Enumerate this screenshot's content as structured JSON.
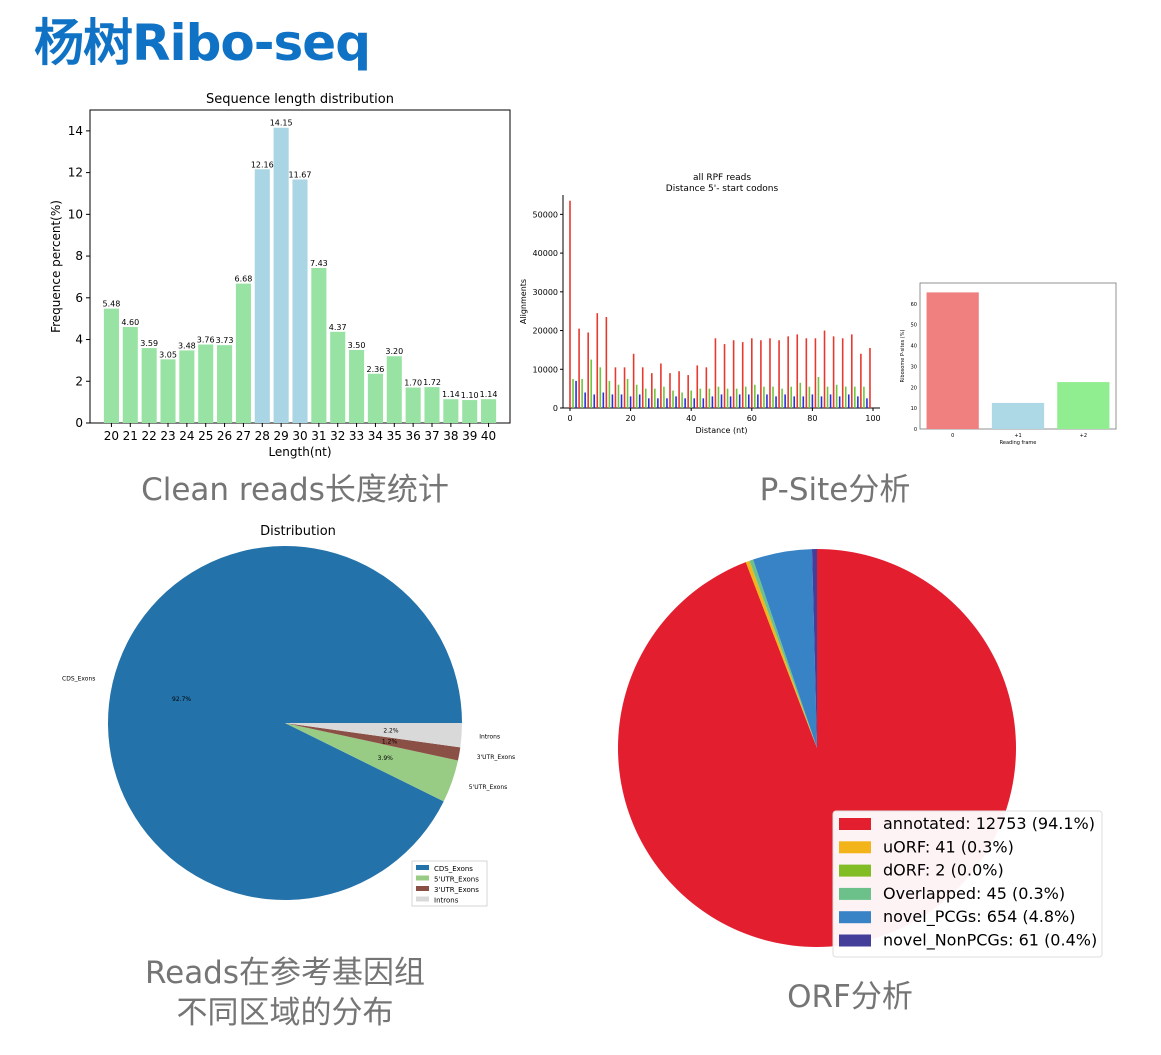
{
  "page": {
    "title": "杨树Ribo-seq"
  },
  "captions": {
    "length": "Clean reads长度统计",
    "psite": "P-Site分析",
    "dist_line1": "Reads在参考基因组",
    "dist_line2": "不同区域的分布",
    "orf": "ORF分析"
  },
  "colors": {
    "title": "#0f72c4",
    "caption": "#757575",
    "green": "#98e3a4",
    "blue": "#a9d5e4"
  },
  "chart_data": [
    {
      "id": "length",
      "type": "bar",
      "title": "Sequence length distribution",
      "xlabel": "Length(nt)",
      "ylabel": "Frequence percent(%)",
      "ylim": [
        0,
        15
      ],
      "yticks": [
        0,
        2,
        4,
        6,
        8,
        10,
        12,
        14
      ],
      "categories": [
        "20",
        "21",
        "22",
        "23",
        "24",
        "25",
        "26",
        "27",
        "28",
        "29",
        "30",
        "31",
        "32",
        "33",
        "34",
        "35",
        "36",
        "37",
        "38",
        "39",
        "40"
      ],
      "values": [
        5.48,
        4.6,
        3.59,
        3.05,
        3.48,
        3.76,
        3.73,
        6.68,
        12.16,
        14.15,
        11.67,
        7.43,
        4.37,
        3.5,
        2.36,
        3.2,
        1.7,
        1.72,
        1.14,
        1.1,
        1.14
      ],
      "labels": [
        "5.48",
        "4.60",
        "3.59",
        "3.05",
        "3.48",
        "3.76",
        "3.73",
        "6.68",
        "12.16",
        "14.15",
        "11.67",
        "7.43",
        "4.37",
        "3.50",
        "2.36",
        "3.20",
        "1.70",
        "1.72",
        "1.14",
        "1.10",
        "1.14"
      ],
      "highlight": [
        "28",
        "29",
        "30"
      ]
    },
    {
      "id": "rpf",
      "type": "bar",
      "title_line1": "all RPF reads",
      "title_line2": "Distance 5'- start codons",
      "xlabel": "Distance (nt)",
      "ylabel": "Alignments",
      "xlim": [
        0,
        100
      ],
      "ylim": [
        0,
        55000
      ],
      "xticks": [
        0,
        20,
        40,
        60,
        80,
        100
      ],
      "yticks": [
        0,
        10000,
        20000,
        30000,
        40000,
        50000
      ],
      "series": [
        {
          "color": "#e8392f",
          "x": [
            0,
            3,
            6,
            9,
            12,
            15,
            18,
            21,
            24,
            27,
            30,
            33,
            36,
            39,
            42,
            45,
            48,
            51,
            54,
            57,
            60,
            63,
            66,
            69,
            72,
            75,
            78,
            81,
            84,
            87,
            90,
            93,
            96,
            99
          ],
          "values": [
            53500,
            20500,
            19500,
            24500,
            23500,
            10500,
            10500,
            14000,
            10500,
            9000,
            11500,
            9000,
            9500,
            8500,
            11000,
            10500,
            18000,
            16500,
            17500,
            17000,
            18000,
            17500,
            18000,
            17500,
            18500,
            19000,
            18000,
            18000,
            20000,
            18500,
            18000,
            19000,
            14000,
            15500
          ]
        },
        {
          "color": "#6ec63c",
          "x": [
            1,
            4,
            7,
            10,
            13,
            16,
            19,
            22,
            25,
            28,
            31,
            34,
            37,
            40,
            43,
            46,
            49,
            52,
            55,
            58,
            61,
            64,
            67,
            70,
            73,
            76,
            79,
            82,
            85,
            88,
            91,
            94,
            97
          ],
          "values": [
            7500,
            7500,
            12500,
            10500,
            7000,
            6000,
            7500,
            6000,
            5000,
            5000,
            5500,
            4500,
            4000,
            4500,
            5000,
            5000,
            5500,
            5000,
            5000,
            5500,
            6000,
            5500,
            5500,
            5000,
            5500,
            6500,
            5500,
            8000,
            5500,
            6000,
            5500,
            5500,
            5500
          ]
        },
        {
          "color": "#2b2fd6",
          "x": [
            2,
            5,
            8,
            11,
            14,
            17,
            20,
            23,
            26,
            29,
            32,
            35,
            38,
            41,
            44,
            47,
            50,
            53,
            56,
            59,
            62,
            65,
            68,
            71,
            74,
            77,
            80,
            83,
            86,
            89,
            92,
            95,
            98
          ],
          "values": [
            7000,
            4000,
            3500,
            4000,
            3500,
            3500,
            3000,
            3500,
            2500,
            2500,
            2500,
            3000,
            2500,
            2500,
            2500,
            3000,
            3500,
            3000,
            3500,
            3500,
            3500,
            3500,
            3000,
            3500,
            3000,
            3000,
            3500,
            3000,
            3500,
            3000,
            3500,
            3000,
            2500
          ]
        }
      ]
    },
    {
      "id": "frame",
      "type": "bar",
      "xlabel": "Reading frame",
      "ylabel": "Ribosome P-sites (%)",
      "ylim": [
        0,
        70
      ],
      "yticks": [
        0,
        10,
        20,
        30,
        40,
        50,
        60
      ],
      "categories": [
        "0",
        "+1",
        "+2"
      ],
      "values": [
        65.5,
        12.5,
        22.5
      ],
      "colors": [
        "#f08080",
        "#add8e6",
        "#90ee90"
      ]
    },
    {
      "id": "dist",
      "type": "pie",
      "title": "Distribution",
      "slices": [
        {
          "label": "CDS_Exons",
          "value": 92.7,
          "pct": "92.7%",
          "color": "#2372aa"
        },
        {
          "label": "5'UTR_Exons",
          "value": 3.9,
          "pct": "3.9%",
          "color": "#98cc84"
        },
        {
          "label": "3'UTR_Exons",
          "value": 1.2,
          "pct": "1.2%",
          "color": "#8b5045"
        },
        {
          "label": "Introns",
          "value": 2.2,
          "pct": "2.2%",
          "color": "#d9d9d9"
        }
      ],
      "legend": [
        "CDS_Exons",
        "5'UTR_Exons",
        "3'UTR_Exons",
        "Introns"
      ],
      "legend_position": "lower-right"
    },
    {
      "id": "orf",
      "type": "pie",
      "slices": [
        {
          "label": "annotated: 12753 (94.1%)",
          "value": 94.1,
          "color": "#e31e2f"
        },
        {
          "label": "uORF: 41 (0.3%)",
          "value": 0.3,
          "color": "#f2b418"
        },
        {
          "label": "dORF: 2 (0.0%)",
          "value": 0.02,
          "color": "#82bd26"
        },
        {
          "label": "Overlapped: 45 (0.3%)",
          "value": 0.3,
          "color": "#6cc18a"
        },
        {
          "label": "novel_PCGs: 654 (4.8%)",
          "value": 4.8,
          "color": "#3883c6"
        },
        {
          "label": "novel_NonPCGs: 61 (0.4%)",
          "value": 0.4,
          "color": "#423e9a"
        }
      ],
      "legend_position": "lower-right"
    }
  ]
}
